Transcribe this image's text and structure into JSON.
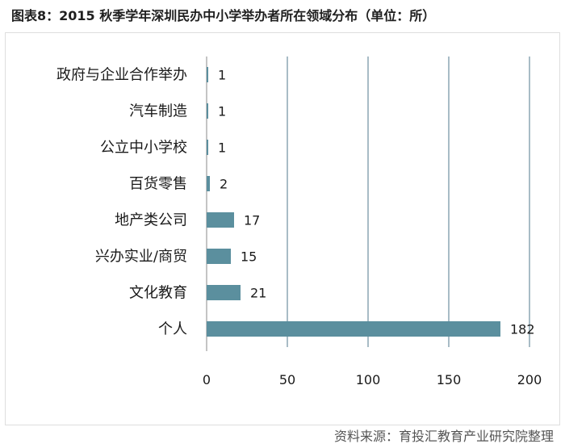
{
  "title": "图表8：2015 秋季学年深圳民办中小学举办者所在领域分布（单位：所）",
  "source": "资料来源：育投汇教育产业研究院整理",
  "colors": {
    "bar": "#5b8f9e",
    "grid": "#6e8fa0"
  },
  "chart_data": {
    "type": "bar",
    "orientation": "horizontal",
    "categories": [
      "政府与企业合作举办",
      "汽车制造",
      "公立中小学校",
      "百货零售",
      "地产类公司",
      "兴办实业/商贸",
      "文化教育",
      "个人"
    ],
    "values": [
      1,
      1,
      1,
      2,
      17,
      15,
      21,
      182
    ],
    "xlim": [
      0,
      200
    ],
    "xticks": [
      0,
      50,
      100,
      150,
      200
    ],
    "grid": true,
    "legend": "none"
  }
}
